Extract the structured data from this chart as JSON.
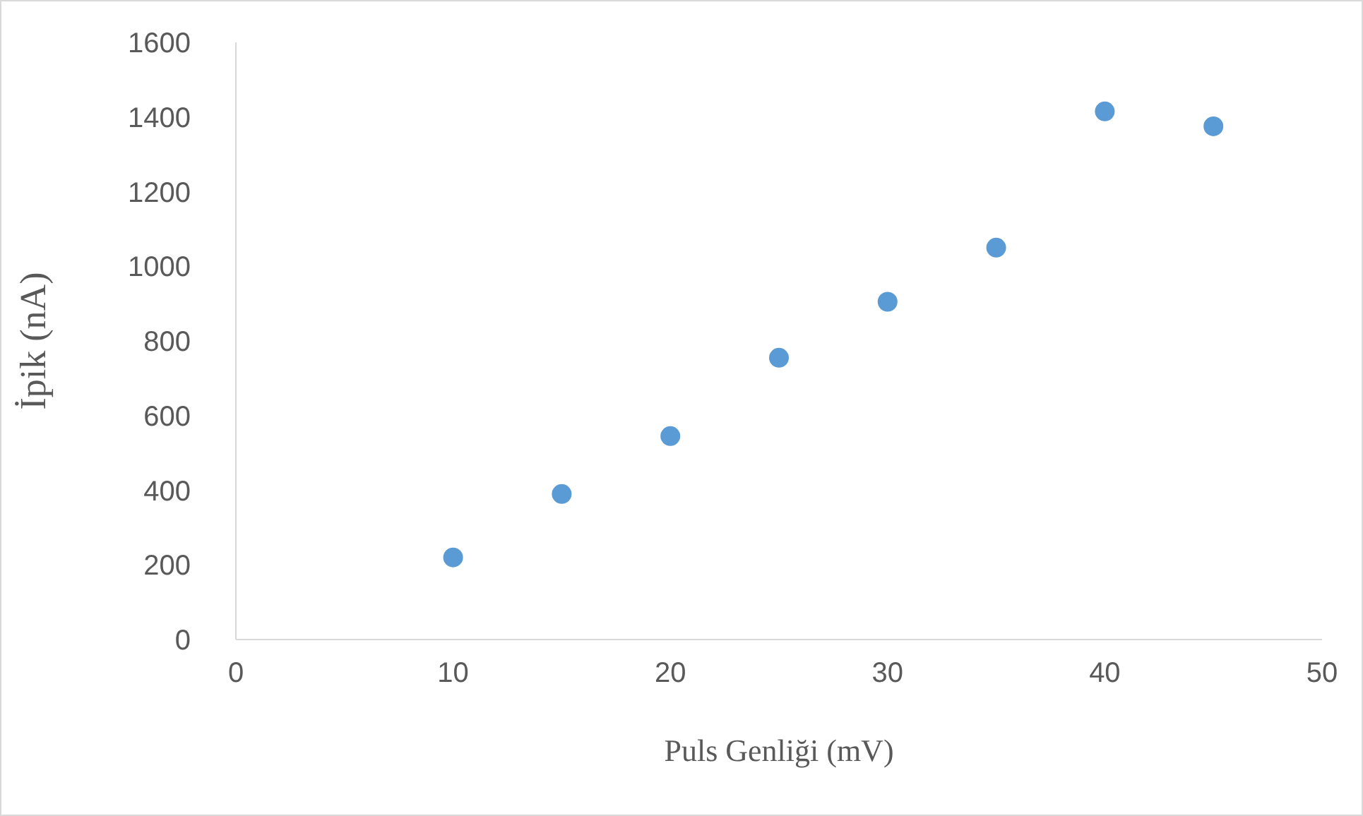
{
  "chart_data": {
    "type": "scatter",
    "xlabel": "Puls Genliği (mV)",
    "ylabel": "İpik (nA)",
    "x": [
      10,
      15,
      20,
      25,
      30,
      35,
      40,
      45
    ],
    "values": [
      220,
      390,
      545,
      755,
      905,
      1050,
      1415,
      1375
    ],
    "color": "#5b9bd5",
    "marker": "circle",
    "xlim": [
      0,
      50
    ],
    "xticks": [
      0,
      10,
      20,
      30,
      40,
      50
    ],
    "ylim": [
      0,
      1600
    ],
    "yticks": [
      0,
      200,
      400,
      600,
      800,
      1000,
      1200,
      1400,
      1600
    ]
  }
}
